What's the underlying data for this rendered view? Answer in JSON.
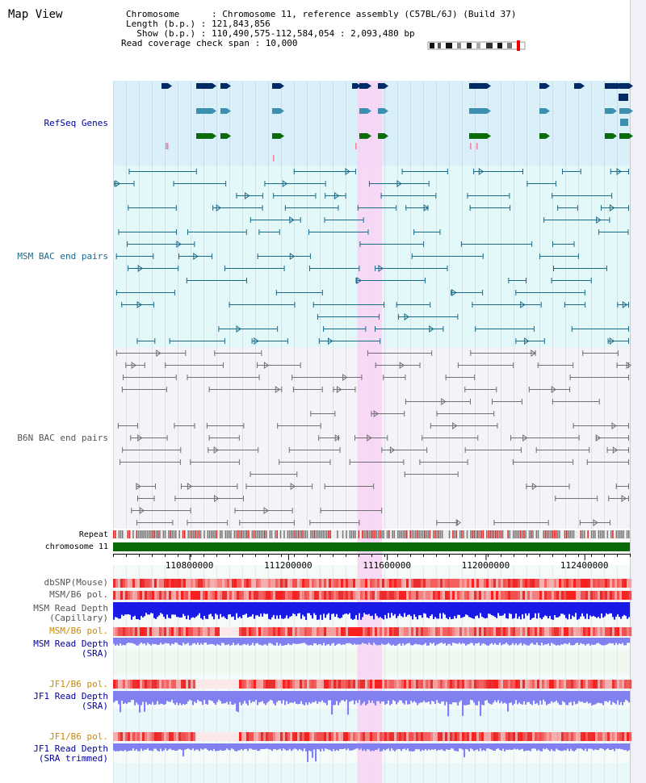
{
  "title": "Map View",
  "header": {
    "chromosome_line": "Chromosome      : Chromosome 11, reference assembly (C57BL/6J) (Build 37)",
    "length_line": "Length (b.p.) : 121,843,856",
    "show_line": "  Show (b.p.) : 110,490,575-112,584,054 : 2,093,480 bp",
    "coverage_line": "Read coverage check span : 10,000"
  },
  "tracks": {
    "refseq": "RefSeq Genes",
    "msm_bac": "MSM BAC end pairs",
    "b6n_bac": "B6N BAC end pairs",
    "repeat": "Repeat",
    "chromosome": "chromosome 11",
    "dbsnp": "dbSNP(Mouse)",
    "msm_b6_pol_1": "MSM/B6 pol.",
    "msm_read_depth_cap_1": "MSM Read Depth",
    "msm_read_depth_cap_2": "(Capillary)",
    "msm_b6_pol_2": "MSM/B6 pol.",
    "msm_read_depth_sra_1": "MSM Read Depth",
    "msm_read_depth_sra_2": "(SRA)",
    "jf1_b6_pol_1": "JF1/B6 pol.",
    "jf1_read_depth_sra_1": "JF1 Read Depth",
    "jf1_read_depth_sra_2": "(SRA)",
    "jf1_b6_pol_2": "JF1/B6 pol.",
    "jf1_read_depth_trim_1": "JF1 Read Depth",
    "jf1_read_depth_trim_2": "(SRA trimmed)"
  },
  "axis": {
    "ticks": [
      {
        "value": 110800000,
        "label": "110800000"
      },
      {
        "value": 111200000,
        "label": "111200000"
      },
      {
        "value": 111600000,
        "label": "111600000"
      },
      {
        "value": 112000000,
        "label": "112000000"
      },
      {
        "value": 112400000,
        "label": "112400000"
      }
    ],
    "range": [
      110490575,
      112584054
    ]
  },
  "highlight": {
    "start": 111480000,
    "end": 111580000
  },
  "colors": {
    "refseq_bg": "#d9f0f8",
    "msm_bg": "#e3f8f8",
    "b6n_bg": "#f4f4f8",
    "highlight": "#f8d4f4",
    "gene_dark": "#002a66",
    "gene_mid": "#3d8fb0",
    "gene_green": "#0b6b0b",
    "msm_line": "#1a6a8a",
    "b6n_line": "#707070",
    "chromosome": "#0a6a0a",
    "depth_blue": "#1a1ae6",
    "depth_light": "#8080f0",
    "label_blue": "#0000a0",
    "label_orange": "#cc8800"
  }
}
